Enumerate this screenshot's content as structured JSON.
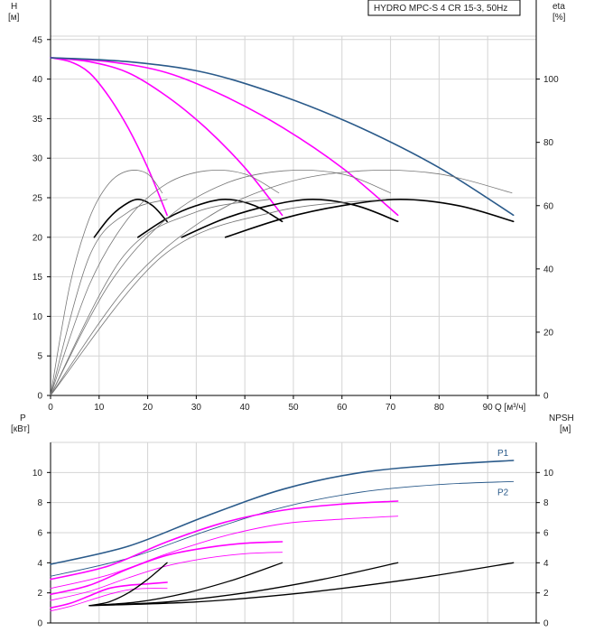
{
  "chart_data": [
    {
      "type": "line",
      "name": "head-efficiency",
      "title": "HYDRO MPC-S 4 CR 15-3, 50Hz",
      "xlabel": "Q [м³/ч]",
      "ylabel_left": [
        "H",
        "[м]"
      ],
      "ylabel_right": [
        "eta",
        "[%]"
      ],
      "xlim": [
        0,
        100
      ],
      "ylim_left": [
        0,
        50
      ],
      "ylim_right": [
        0,
        125
      ],
      "xticks": [
        0,
        10,
        20,
        30,
        40,
        50,
        60,
        70,
        80,
        90
      ],
      "yticks_left": [
        0,
        5,
        10,
        15,
        20,
        25,
        30,
        35,
        40,
        45
      ],
      "yticks_right": [
        0,
        20,
        40,
        60,
        80,
        100
      ],
      "grid": true,
      "series": [
        {
          "name": "H 1 pump",
          "axis": "left",
          "color": "#ff00ff",
          "width": 1.6,
          "x": [
            0,
            4,
            8,
            12,
            16,
            20,
            24
          ],
          "y": [
            42.7,
            42.2,
            40.8,
            37.8,
            33.8,
            28.8,
            22.8
          ]
        },
        {
          "name": "H 2 pumps",
          "axis": "left",
          "color": "#ff00ff",
          "width": 1.6,
          "x": [
            0,
            8,
            16,
            24,
            32,
            40,
            47.7
          ],
          "y": [
            42.7,
            42.2,
            40.8,
            37.8,
            33.8,
            28.8,
            22.8
          ]
        },
        {
          "name": "H 3 pumps",
          "axis": "left",
          "color": "#ff00ff",
          "width": 1.6,
          "x": [
            0,
            12,
            24,
            36,
            48,
            60,
            71.5
          ],
          "y": [
            42.7,
            42.2,
            40.8,
            37.8,
            33.8,
            28.8,
            22.8
          ]
        },
        {
          "name": "H 4 pumps",
          "axis": "left",
          "color": "#2a5a8a",
          "width": 1.6,
          "x": [
            0,
            16,
            32,
            48,
            64,
            80,
            95.3
          ],
          "y": [
            42.7,
            42.2,
            40.8,
            37.8,
            33.8,
            28.8,
            22.8
          ]
        },
        {
          "name": "eta 1 pump",
          "axis": "right",
          "color": "#000000",
          "width": 1.6,
          "x": [
            9,
            12,
            15,
            18,
            21,
            24
          ],
          "y": [
            50,
            56,
            60,
            62,
            60,
            55
          ]
        },
        {
          "name": "eta 2 pumps",
          "axis": "right",
          "color": "#000000",
          "width": 1.6,
          "x": [
            18,
            24,
            30,
            36,
            42,
            47.7
          ],
          "y": [
            50,
            56,
            60,
            62,
            60,
            55
          ]
        },
        {
          "name": "eta 3 pumps",
          "axis": "right",
          "color": "#000000",
          "width": 1.6,
          "x": [
            27,
            36,
            45,
            54,
            63,
            71.5
          ],
          "y": [
            50,
            56,
            60,
            62,
            60,
            55
          ]
        },
        {
          "name": "eta 4 pumps",
          "axis": "right",
          "color": "#000000",
          "width": 1.6,
          "x": [
            36,
            48,
            60,
            72,
            84,
            95.3
          ],
          "y": [
            50,
            56,
            60,
            62,
            60,
            55
          ]
        },
        {
          "name": "eta total 1",
          "axis": "right",
          "color": "#777777",
          "width": 0.8,
          "x": [
            0,
            4,
            8,
            12,
            16,
            20,
            23
          ],
          "y": [
            0,
            35,
            56,
            67,
            71,
            70,
            64
          ]
        },
        {
          "name": "eta total 2",
          "axis": "right",
          "color": "#777777",
          "width": 0.8,
          "x": [
            0,
            8,
            16,
            24,
            32,
            40,
            47
          ],
          "y": [
            0,
            35,
            56,
            67,
            71,
            70,
            64
          ]
        },
        {
          "name": "eta total 3",
          "axis": "right",
          "color": "#777777",
          "width": 0.8,
          "x": [
            0,
            12,
            24,
            36,
            48,
            60,
            70
          ],
          "y": [
            0,
            35,
            56,
            67,
            71,
            70,
            64
          ]
        },
        {
          "name": "eta total 4",
          "axis": "right",
          "color": "#777777",
          "width": 0.8,
          "x": [
            0,
            16,
            32,
            48,
            64,
            80,
            95
          ],
          "y": [
            0,
            35,
            56,
            67,
            71,
            70,
            64
          ]
        },
        {
          "name": "eta partial 1",
          "axis": "right",
          "color": "#777777",
          "width": 0.8,
          "x": [
            0,
            8,
            16,
            24
          ],
          "y": [
            0,
            44,
            58,
            62
          ]
        },
        {
          "name": "eta partial 2",
          "axis": "right",
          "color": "#777777",
          "width": 0.8,
          "x": [
            0,
            15,
            30,
            45
          ],
          "y": [
            0,
            44,
            58,
            62
          ]
        },
        {
          "name": "eta partial 3",
          "axis": "right",
          "color": "#777777",
          "width": 0.8,
          "x": [
            0,
            23,
            46,
            69
          ],
          "y": [
            0,
            44,
            58,
            62
          ]
        }
      ]
    },
    {
      "type": "line",
      "name": "power-npsh",
      "title": "",
      "xlabel": "",
      "ylabel_left": [
        "P",
        "[кВт]"
      ],
      "ylabel_right": [
        "NPSH",
        "[м]"
      ],
      "xlim": [
        0,
        100
      ],
      "ylim_left": [
        0,
        12
      ],
      "ylim_right": [
        0,
        12
      ],
      "yticks_left": [
        0,
        2,
        4,
        6,
        8,
        10
      ],
      "yticks_right": [
        0,
        2,
        4,
        6,
        8,
        10
      ],
      "grid": true,
      "series_labels": [
        {
          "text": "P1",
          "x": 92,
          "y": 11.1,
          "color": "#2a5a8a"
        },
        {
          "text": "P2",
          "x": 92,
          "y": 8.5,
          "color": "#2a5a8a"
        }
      ],
      "series": [
        {
          "name": "P1",
          "axis": "left",
          "color": "#2a5a8a",
          "width": 1.6,
          "x": [
            0,
            16,
            32,
            48,
            64,
            80,
            95.3
          ],
          "y": [
            3.9,
            5.1,
            7.1,
            8.9,
            10.0,
            10.5,
            10.8
          ]
        },
        {
          "name": "P2",
          "axis": "left",
          "color": "#2a5a8a",
          "width": 0.9,
          "x": [
            0,
            16,
            32,
            48,
            64,
            80,
            95.3
          ],
          "y": [
            3.1,
            4.3,
            6.1,
            7.7,
            8.7,
            9.2,
            9.4
          ]
        },
        {
          "name": "P1 3 pumps",
          "axis": "left",
          "color": "#ff00ff",
          "width": 1.6,
          "x": [
            0,
            12,
            24,
            36,
            48,
            60,
            71.5
          ],
          "y": [
            2.9,
            3.8,
            5.4,
            6.7,
            7.5,
            7.9,
            8.1
          ]
        },
        {
          "name": "P2 3 pumps",
          "axis": "left",
          "color": "#ff00ff",
          "width": 0.9,
          "x": [
            0,
            12,
            24,
            36,
            48,
            60,
            71.5
          ],
          "y": [
            2.3,
            3.2,
            4.6,
            5.8,
            6.6,
            6.9,
            7.1
          ]
        },
        {
          "name": "P1 2 pumps",
          "axis": "left",
          "color": "#ff00ff",
          "width": 1.6,
          "x": [
            0,
            8,
            16,
            24,
            32,
            40,
            47.7
          ],
          "y": [
            1.9,
            2.5,
            3.6,
            4.5,
            5.0,
            5.3,
            5.4
          ]
        },
        {
          "name": "P2 2 pumps",
          "axis": "left",
          "color": "#ff00ff",
          "width": 0.9,
          "x": [
            0,
            8,
            16,
            24,
            32,
            40,
            47.7
          ],
          "y": [
            1.5,
            2.1,
            3.0,
            3.8,
            4.3,
            4.6,
            4.7
          ]
        },
        {
          "name": "P1 1 pump",
          "axis": "left",
          "color": "#ff00ff",
          "width": 1.6,
          "x": [
            0,
            4,
            8,
            12,
            16,
            20,
            24
          ],
          "y": [
            1.0,
            1.3,
            1.8,
            2.3,
            2.5,
            2.6,
            2.7
          ]
        },
        {
          "name": "P2 1 pump",
          "axis": "left",
          "color": "#ff00ff",
          "width": 0.9,
          "x": [
            0,
            4,
            8,
            12,
            16,
            20,
            24
          ],
          "y": [
            0.8,
            1.1,
            1.5,
            1.9,
            2.2,
            2.3,
            2.3
          ]
        },
        {
          "name": "NPSH 1 pump",
          "axis": "right",
          "color": "#000000",
          "width": 1.3,
          "x": [
            8,
            12,
            16,
            20,
            24
          ],
          "y": [
            1.15,
            1.4,
            2.0,
            2.9,
            4.0
          ]
        },
        {
          "name": "NPSH 2 pumps",
          "axis": "right",
          "color": "#000000",
          "width": 1.3,
          "x": [
            8,
            18,
            28,
            38,
            47.7
          ],
          "y": [
            1.15,
            1.4,
            2.0,
            2.9,
            4.0
          ]
        },
        {
          "name": "NPSH 3 pumps",
          "axis": "right",
          "color": "#000000",
          "width": 1.3,
          "x": [
            8,
            24,
            40,
            56,
            71.5
          ],
          "y": [
            1.15,
            1.4,
            2.0,
            2.9,
            4.0
          ]
        },
        {
          "name": "NPSH 4 pumps",
          "axis": "right",
          "color": "#000000",
          "width": 1.3,
          "x": [
            8,
            30,
            52,
            74,
            95.3
          ],
          "y": [
            1.15,
            1.4,
            2.0,
            2.9,
            4.0
          ]
        }
      ]
    }
  ]
}
